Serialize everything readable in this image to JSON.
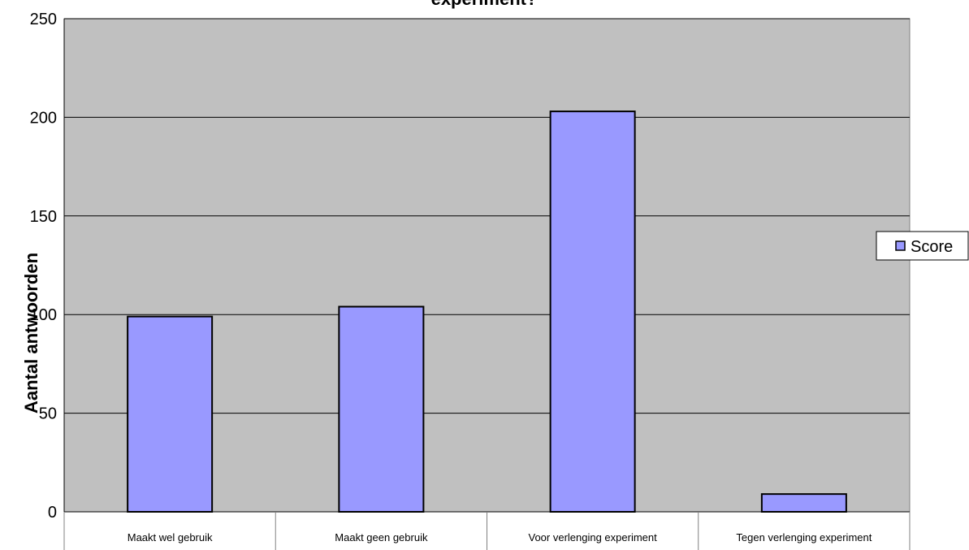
{
  "chart_data": {
    "type": "bar",
    "title": "experiment?",
    "ylabel": "Aantal antwoorden",
    "xlabel": "",
    "categories": [
      "Maakt wel gebruik",
      "Maakt geen gebruik",
      "Voor verlenging experiment",
      "Tegen verlenging experiment"
    ],
    "series": [
      {
        "name": "Score",
        "values": [
          99,
          104,
          203,
          9
        ]
      }
    ],
    "ylim": [
      0,
      250
    ],
    "yticks": [
      "0",
      "50",
      "100",
      "150",
      "200",
      "250"
    ],
    "grid": true,
    "legend_position": "right"
  },
  "colors": {
    "plot_background": "#c0c0c0",
    "bar_fill": "#9999ff",
    "bar_stroke": "#000000",
    "gridline": "#000000"
  }
}
